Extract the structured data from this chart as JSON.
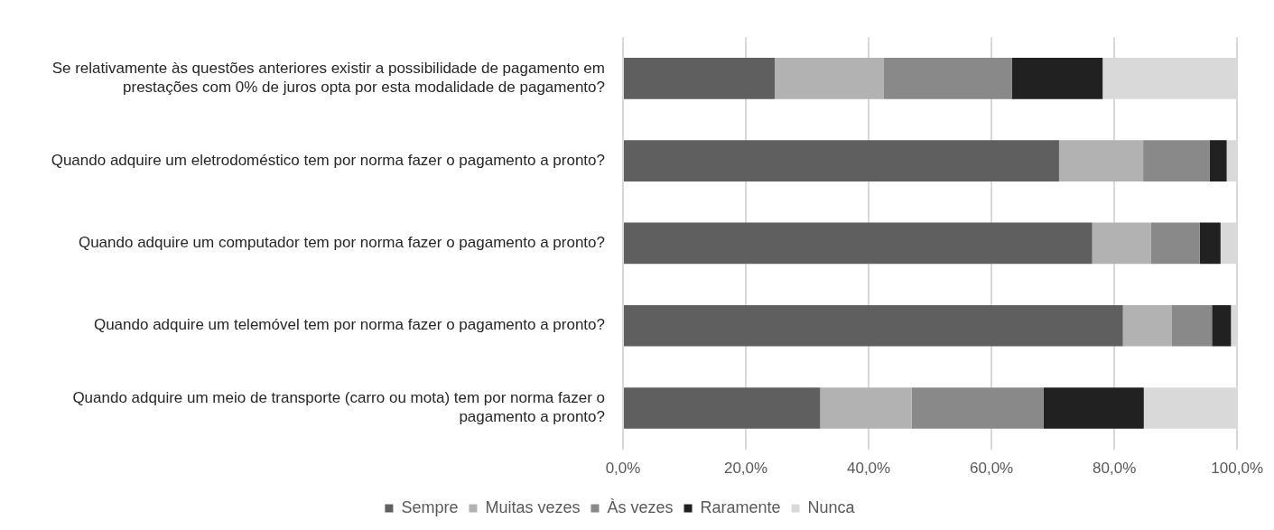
{
  "chart_data": {
    "type": "bar",
    "orientation": "horizontal",
    "stacked": true,
    "categories": [
      "Se relativamente às questões anteriores existir a possibilidade de pagamento em prestações com 0% de juros opta por esta modalidade de pagamento?",
      "Quando adquire um eletrodoméstico tem por norma fazer o pagamento a pronto?",
      "Quando adquire um computador tem por norma fazer o pagamento a pronto?",
      "Quando adquire um telemóvel tem por norma fazer o pagamento a pronto?",
      "Quando adquire um meio de transporte (carro ou mota) tem por norma fazer o pagamento a pronto?"
    ],
    "series": [
      {
        "name": "Sempre",
        "color": "#5f5f5f",
        "values": [
          24.7,
          71.0,
          76.4,
          81.4,
          32.1
        ]
      },
      {
        "name": "Muitas vezes",
        "color": "#b2b2b2",
        "values": [
          17.7,
          13.7,
          9.6,
          7.9,
          14.9
        ]
      },
      {
        "name": "Às vezes",
        "color": "#898989",
        "values": [
          20.9,
          10.8,
          7.9,
          6.6,
          21.5
        ]
      },
      {
        "name": "Raramente",
        "color": "#212121",
        "values": [
          14.8,
          2.8,
          3.4,
          3.1,
          16.3
        ]
      },
      {
        "name": "Nunca",
        "color": "#d9d9d9",
        "values": [
          21.9,
          1.7,
          2.7,
          1.0,
          15.2
        ]
      }
    ],
    "xlim": [
      0,
      100
    ],
    "xticks": [
      {
        "value": 0,
        "label": "0,0%"
      },
      {
        "value": 20,
        "label": "20,0%"
      },
      {
        "value": 40,
        "label": "40,0%"
      },
      {
        "value": 60,
        "label": "60,0%"
      },
      {
        "value": 80,
        "label": "80,0%"
      },
      {
        "value": 100,
        "label": "100,0%"
      }
    ],
    "grid": "x",
    "legend": "bottom"
  }
}
